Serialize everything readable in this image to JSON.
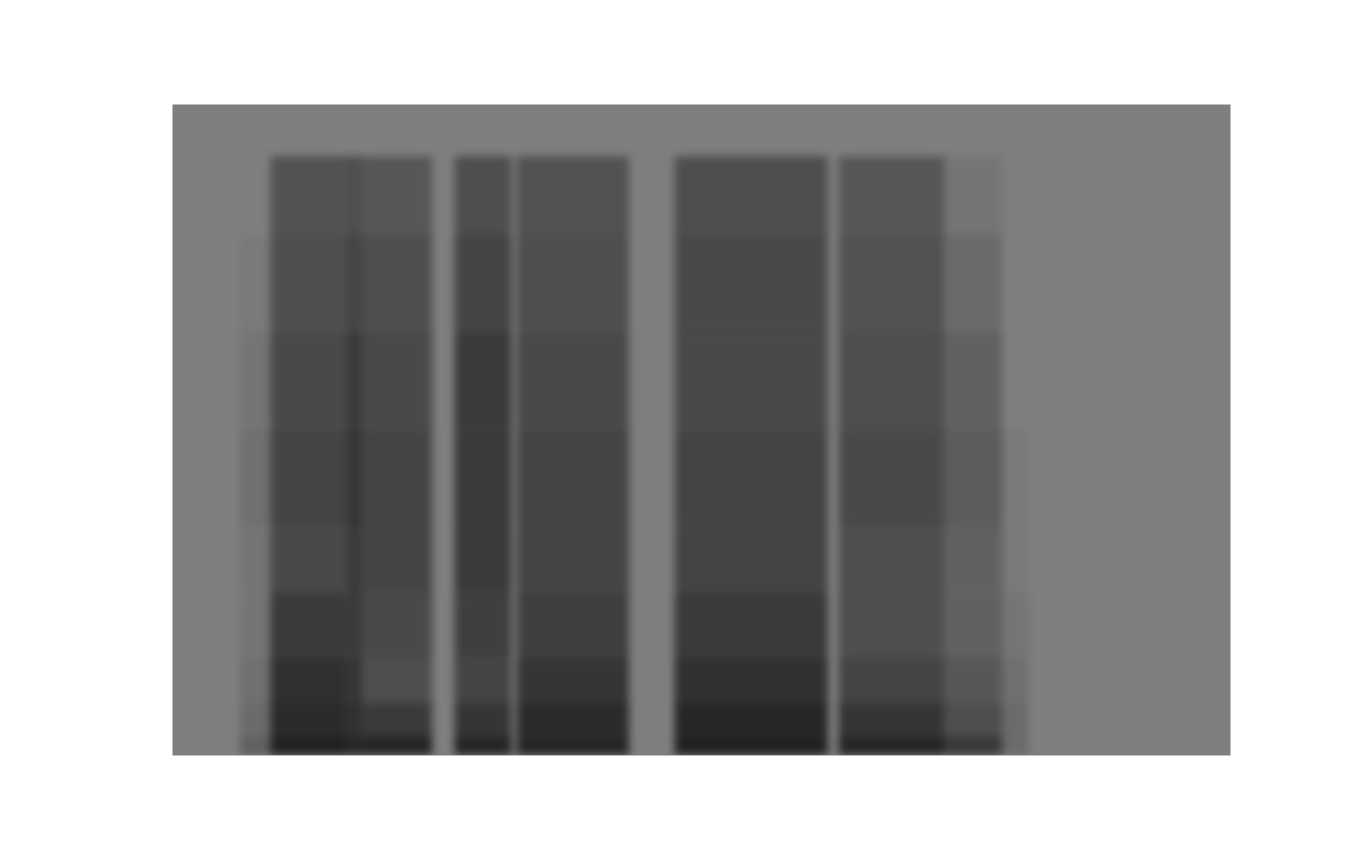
{
  "chart_data": {
    "type": "heatmap",
    "tick_labels": false,
    "grid": false,
    "xlim": [
      0,
      100
    ],
    "ylim": [
      0,
      100
    ],
    "zlim": [
      0,
      1
    ],
    "band_edges": [
      0,
      3,
      8,
      15,
      25,
      35,
      50,
      65,
      80,
      92
    ],
    "segments": [
      {
        "start": 6.4,
        "end": 9.3,
        "levels": [
          0.3,
          0.2,
          0.15,
          0.1,
          0.1,
          0.15,
          0.1,
          0.05,
          0
        ]
      },
      {
        "start": 9.3,
        "end": 16.5,
        "levels": [
          0.95,
          0.85,
          0.8,
          0.7,
          0.55,
          0.6,
          0.55,
          0.5,
          0.45
        ]
      },
      {
        "start": 16.5,
        "end": 18.0,
        "levels": [
          0.9,
          0.8,
          0.75,
          0.7,
          0.7,
          0.75,
          0.7,
          0.6,
          0.5
        ]
      },
      {
        "start": 18.0,
        "end": 24.6,
        "levels": [
          0.9,
          0.7,
          0.5,
          0.55,
          0.6,
          0.6,
          0.55,
          0.5,
          0.4
        ]
      },
      {
        "start": 26.7,
        "end": 32.1,
        "levels": [
          0.9,
          0.75,
          0.6,
          0.65,
          0.7,
          0.7,
          0.7,
          0.6,
          0.5
        ]
      },
      {
        "start": 32.6,
        "end": 43.2,
        "levels": [
          0.9,
          0.85,
          0.75,
          0.65,
          0.6,
          0.6,
          0.55,
          0.5,
          0.45
        ]
      },
      {
        "start": 47.5,
        "end": 62.0,
        "levels": [
          0.95,
          0.9,
          0.8,
          0.7,
          0.6,
          0.6,
          0.55,
          0.55,
          0.5
        ]
      },
      {
        "start": 63.0,
        "end": 73.0,
        "levels": [
          0.9,
          0.75,
          0.6,
          0.5,
          0.5,
          0.55,
          0.5,
          0.45,
          0.4
        ]
      },
      {
        "start": 73.0,
        "end": 78.5,
        "levels": [
          0.7,
          0.5,
          0.4,
          0.3,
          0.3,
          0.35,
          0.3,
          0.2,
          0.1
        ]
      },
      {
        "start": 78.5,
        "end": 81.0,
        "levels": [
          0.2,
          0.2,
          0.15,
          0.1,
          0.05,
          0.05,
          0,
          0,
          0
        ]
      }
    ]
  }
}
